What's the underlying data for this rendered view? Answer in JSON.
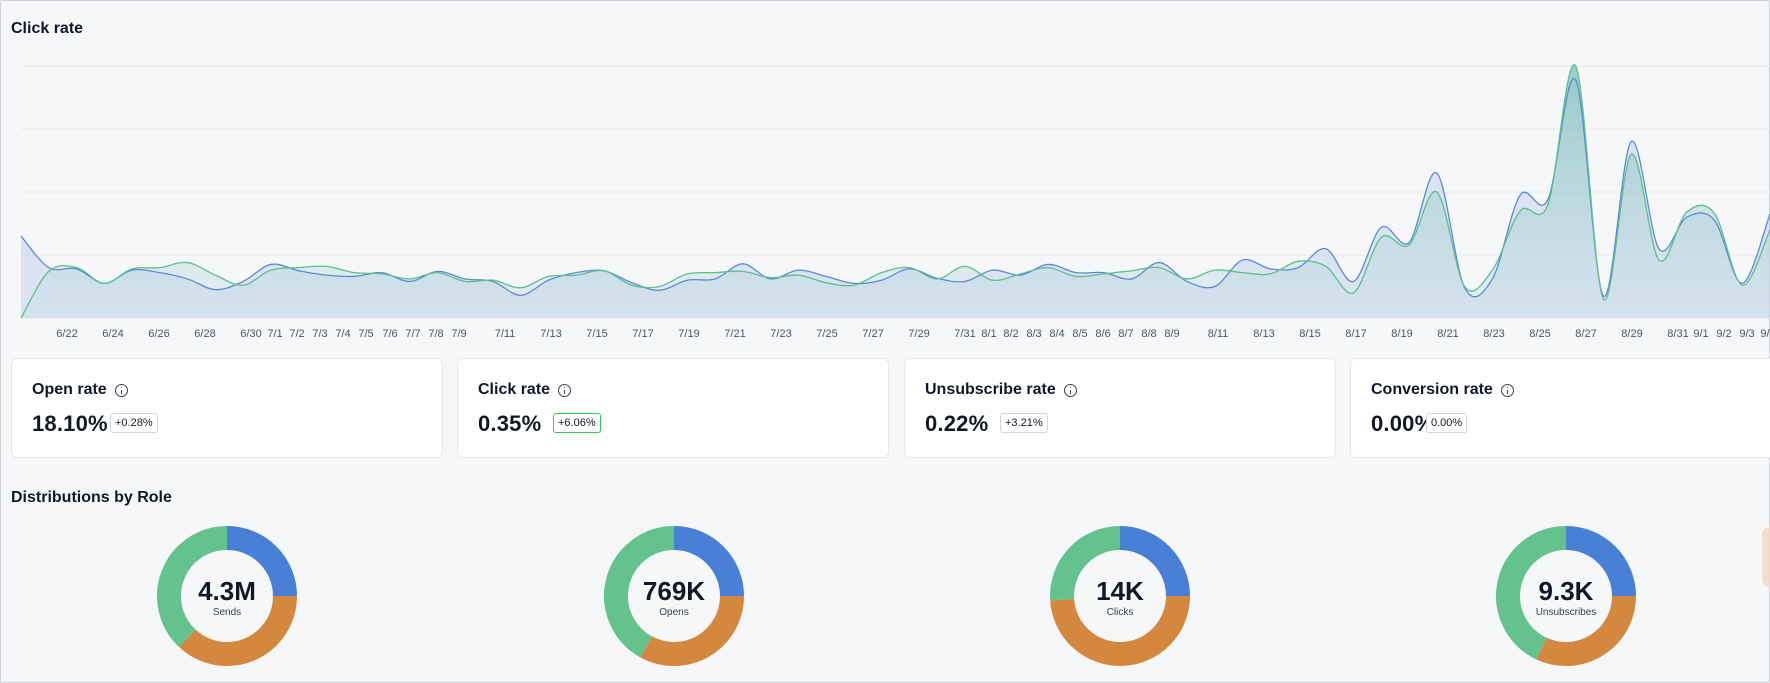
{
  "chart_section": {
    "title": "Click rate"
  },
  "chart_data": {
    "type": "area",
    "title": "",
    "xlabel": "",
    "ylabel": "",
    "grid": true,
    "x_tick_labels": [
      "6/22",
      "6/24",
      "6/26",
      "6/28",
      "6/30",
      "7/1",
      "7/2",
      "7/3",
      "7/4",
      "7/5",
      "7/6",
      "7/7",
      "7/8",
      "7/9",
      "7/11",
      "7/13",
      "7/15",
      "7/17",
      "7/19",
      "7/21",
      "7/23",
      "7/25",
      "7/27",
      "7/29",
      "7/31",
      "8/1",
      "8/2",
      "8/3",
      "8/4",
      "8/5",
      "8/6",
      "8/7",
      "8/8",
      "8/9",
      "8/11",
      "8/13",
      "8/15",
      "8/17",
      "8/19",
      "8/21",
      "8/23",
      "8/25",
      "8/27",
      "8/29",
      "8/31",
      "9/1",
      "9/2",
      "9/3",
      "9/"
    ],
    "ylim": [
      0,
      4
    ],
    "series": [
      {
        "color": "#5b8ad8",
        "values": [
          1.3,
          0.8,
          0.78,
          0.55,
          0.76,
          0.72,
          0.62,
          0.45,
          0.58,
          0.85,
          0.75,
          0.68,
          0.66,
          0.72,
          0.58,
          0.74,
          0.62,
          0.58,
          0.36,
          0.6,
          0.72,
          0.75,
          0.56,
          0.44,
          0.6,
          0.62,
          0.86,
          0.62,
          0.76,
          0.66,
          0.55,
          0.6,
          0.78,
          0.63,
          0.58,
          0.76,
          0.68,
          0.85,
          0.72,
          0.72,
          0.62,
          0.88,
          0.58,
          0.5,
          0.92,
          0.78,
          0.8,
          1.1,
          0.58,
          1.44,
          1.2,
          2.3,
          0.48,
          0.62,
          1.95,
          1.88,
          3.78,
          0.35,
          2.8,
          1.1,
          1.6,
          1.55,
          0.55,
          1.65
        ]
      },
      {
        "color": "#5cc08a",
        "values": [
          0.0,
          0.74,
          0.8,
          0.55,
          0.78,
          0.8,
          0.88,
          0.68,
          0.52,
          0.76,
          0.8,
          0.82,
          0.72,
          0.7,
          0.62,
          0.72,
          0.58,
          0.6,
          0.48,
          0.66,
          0.68,
          0.75,
          0.52,
          0.5,
          0.7,
          0.72,
          0.74,
          0.64,
          0.68,
          0.56,
          0.52,
          0.72,
          0.8,
          0.62,
          0.82,
          0.6,
          0.7,
          0.8,
          0.66,
          0.7,
          0.75,
          0.8,
          0.62,
          0.76,
          0.72,
          0.7,
          0.9,
          0.82,
          0.4,
          1.28,
          1.16,
          2.0,
          0.5,
          0.76,
          1.7,
          1.8,
          4.0,
          0.3,
          2.6,
          0.92,
          1.68,
          1.66,
          0.52,
          1.4
        ]
      }
    ]
  },
  "kpis": [
    {
      "name": "Open rate",
      "value": "18.10%",
      "delta": "+0.28%",
      "highlight": false
    },
    {
      "name": "Click rate",
      "value": "0.35%",
      "delta": "+6.06%",
      "highlight": true
    },
    {
      "name": "Unsubscribe rate",
      "value": "0.22%",
      "delta": "+3.21%",
      "highlight": false
    },
    {
      "name": "Conversion rate",
      "value": "0.00%",
      "delta": "0.00%",
      "highlight": false
    }
  ],
  "distribution_section": {
    "title": "Distributions by Role"
  },
  "donuts": [
    {
      "value": "4.3M",
      "label": "Sends",
      "segments": [
        0.25,
        0.37,
        0.38
      ]
    },
    {
      "value": "769K",
      "label": "Opens",
      "segments": [
        0.25,
        0.33,
        0.42
      ]
    },
    {
      "value": "14K",
      "label": "Clicks",
      "segments": [
        0.25,
        0.49,
        0.26
      ]
    },
    {
      "value": "9.3K",
      "label": "Unsubscribes",
      "segments": [
        0.25,
        0.32,
        0.43
      ]
    }
  ],
  "colors": {
    "blue": "#4a7fd6",
    "orange": "#d4873f",
    "green": "#64c28c",
    "accent_positive": "#34c759"
  }
}
